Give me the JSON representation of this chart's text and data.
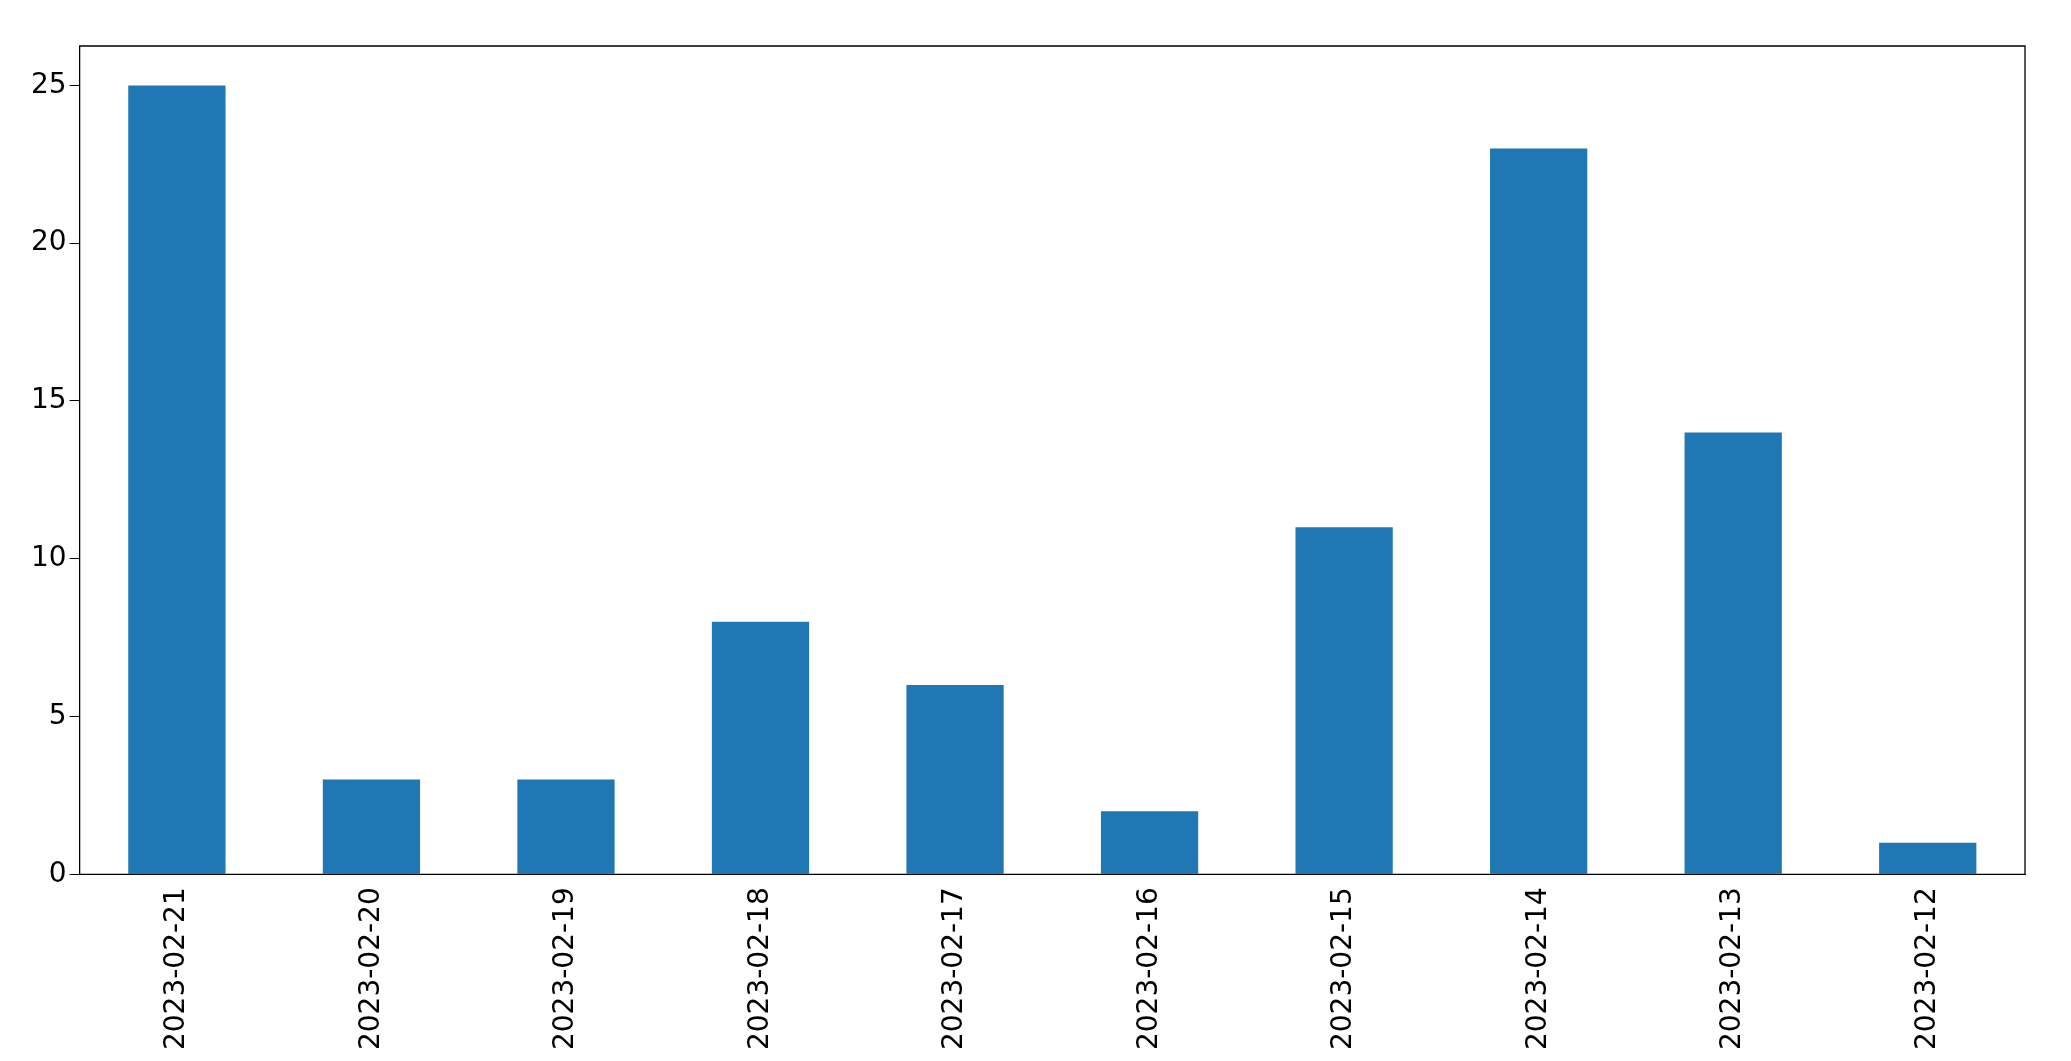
{
  "chart_data": {
    "type": "bar",
    "categories": [
      "2023-02-21",
      "2023-02-20",
      "2023-02-19",
      "2023-02-18",
      "2023-02-17",
      "2023-02-16",
      "2023-02-15",
      "2023-02-14",
      "2023-02-13",
      "2023-02-12"
    ],
    "values": [
      25,
      3,
      3,
      8,
      6,
      2,
      11,
      23,
      14,
      1
    ],
    "color": "#1f77b4",
    "ylim": [
      0,
      26.25
    ],
    "yticks": [
      0,
      5,
      10,
      15,
      20,
      25
    ],
    "grid": false,
    "legend": false
  }
}
